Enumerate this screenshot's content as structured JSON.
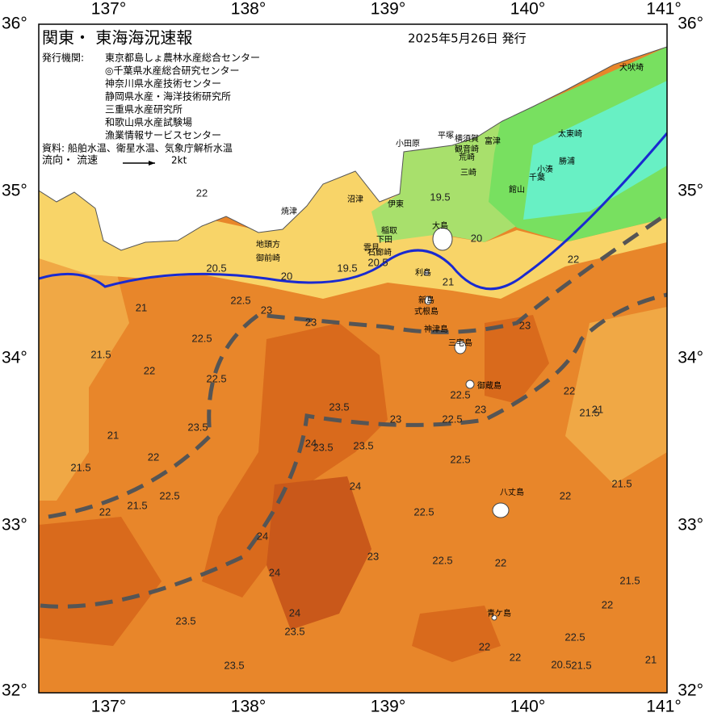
{
  "header": {
    "title": "関東・ 東海海況速報",
    "date": "2025年5月26日 発行",
    "issuer_label": "発行機関:",
    "issuers": [
      "東京都島しょ農林水産総合センター",
      "◎千葉県水産総合研究センター",
      "神奈川県水産技術センター",
      "静岡県水産・海洋技術研究所",
      "三重県水産研究所",
      "和歌山県水産試験場",
      "漁業情報サービスセンター"
    ],
    "sources": "資料: 船舶水温、衛星水温、気象庁解析水温",
    "flow_label": "流向・ 流速",
    "flow_scale": "2kt"
  },
  "map": {
    "lon_ticks": [
      {
        "value": 137,
        "label": "137°"
      },
      {
        "value": 138,
        "label": "138°"
      },
      {
        "value": 139,
        "label": "139°"
      },
      {
        "value": 140,
        "label": "140°"
      },
      {
        "value": 141,
        "label": "141°"
      }
    ],
    "lat_ticks": [
      {
        "value": 36,
        "label": "36°"
      },
      {
        "value": 35,
        "label": "35°"
      },
      {
        "value": 34,
        "label": "34°"
      },
      {
        "value": 33,
        "label": "33°"
      },
      {
        "value": 32,
        "label": "32°"
      }
    ],
    "place_names": [
      "犬吠埼",
      "太東崎",
      "勝浦",
      "小湊",
      "千葉",
      "館山",
      "富津",
      "横須賀",
      "観音崎",
      "荒崎",
      "三崎",
      "平塚",
      "小田原",
      "伊東",
      "稲取",
      "下田",
      "石廊崎",
      "雲見",
      "沼津",
      "焼津",
      "地頭方",
      "御前崎",
      "大島",
      "利島",
      "新島",
      "式根島",
      "神津島",
      "三宅島",
      "御蔵島",
      "八丈島",
      "青ケ島"
    ],
    "contour_labels": [
      "20.5",
      "20",
      "19.5",
      "19.5",
      "20",
      "20.5",
      "21",
      "21",
      "21.5",
      "22",
      "22",
      "22.5",
      "22.5",
      "23",
      "23",
      "23.5",
      "23.5",
      "23.5",
      "23",
      "23",
      "22.5",
      "22.5",
      "22",
      "21.5",
      "21.5",
      "21",
      "22",
      "22.5",
      "21.5",
      "22",
      "24",
      "24",
      "24",
      "23.5",
      "23.5",
      "23.5",
      "24",
      "23",
      "22.5",
      "22.5",
      "22",
      "22.5",
      "22",
      "21.5",
      "21",
      "21.5",
      "22",
      "22.5",
      "23.5",
      "24",
      "22.5",
      "22",
      "23",
      "22",
      "20.5",
      "21",
      "21.5",
      "22"
    ]
  }
}
